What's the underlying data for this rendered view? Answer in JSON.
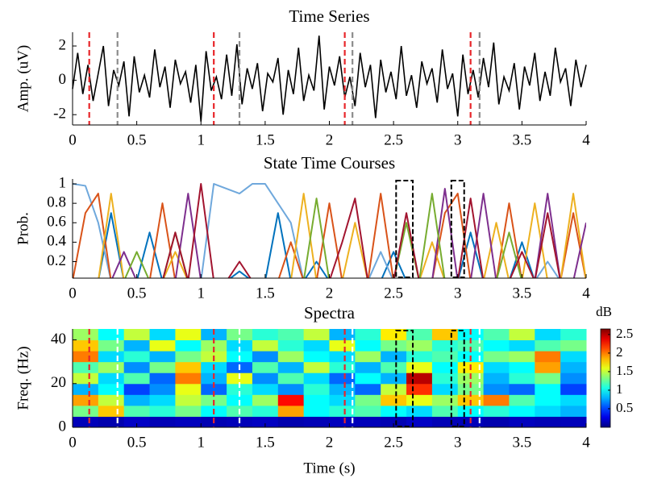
{
  "chart_data": [
    {
      "type": "line",
      "title": "Time Series",
      "ylabel": "Amp. (uV)",
      "color": "#000000",
      "xlim": [
        0,
        4
      ],
      "xticks": [
        0,
        0.5,
        1,
        1.5,
        2,
        2.5,
        3,
        3.5,
        4
      ],
      "ylim": [
        -2.6,
        2.8
      ],
      "yticks": [
        -2,
        0,
        2
      ],
      "x": [
        0,
        0.04,
        0.08,
        0.12,
        0.16,
        0.2,
        0.24,
        0.28,
        0.32,
        0.36,
        0.4,
        0.44,
        0.48,
        0.52,
        0.56,
        0.6,
        0.64,
        0.68,
        0.72,
        0.76,
        0.8,
        0.84,
        0.88,
        0.92,
        0.96,
        1,
        1.04,
        1.08,
        1.12,
        1.16,
        1.2,
        1.24,
        1.28,
        1.32,
        1.36,
        1.4,
        1.44,
        1.48,
        1.52,
        1.56,
        1.6,
        1.64,
        1.68,
        1.72,
        1.76,
        1.8,
        1.84,
        1.88,
        1.92,
        1.96,
        2,
        2.04,
        2.08,
        2.12,
        2.16,
        2.2,
        2.24,
        2.28,
        2.32,
        2.36,
        2.4,
        2.44,
        2.48,
        2.52,
        2.56,
        2.6,
        2.64,
        2.68,
        2.72,
        2.76,
        2.8,
        2.84,
        2.88,
        2.92,
        2.96,
        3,
        3.04,
        3.08,
        3.12,
        3.16,
        3.2,
        3.24,
        3.28,
        3.32,
        3.36,
        3.4,
        3.44,
        3.48,
        3.52,
        3.56,
        3.6,
        3.64,
        3.68,
        3.72,
        3.76,
        3.8,
        3.84,
        3.88,
        3.92,
        3.96,
        4
      ],
      "values": [
        -0.5,
        1.6,
        -0.8,
        0.9,
        -1.2,
        0.4,
        2.0,
        -1.5,
        0.6,
        -0.3,
        1.1,
        -2.1,
        1.4,
        -0.7,
        0.3,
        -1.0,
        1.8,
        -0.4,
        0.8,
        -1.6,
        1.2,
        -0.2,
        0.5,
        -1.3,
        0.9,
        -2.4,
        1.7,
        -0.6,
        0.2,
        -1.1,
        1.5,
        -0.9,
        2.1,
        -1.4,
        0.7,
        -0.5,
        1.0,
        -1.8,
        0.4,
        -0.1,
        1.3,
        -2.0,
        0.6,
        -0.8,
        1.9,
        -1.2,
        0.3,
        -0.6,
        2.6,
        -1.7,
        0.8,
        -0.3,
        1.4,
        -1.0,
        0.2,
        -1.5,
        1.6,
        -0.4,
        0.9,
        -2.2,
        1.2,
        -0.7,
        0.5,
        -1.1,
        2.0,
        -0.9,
        0.3,
        -1.6,
        1.1,
        -0.2,
        0.7,
        -1.3,
        1.8,
        -0.5,
        0.4,
        -2.1,
        1.5,
        -0.8,
        0.6,
        -1.0,
        1.3,
        -0.4,
        2.2,
        -1.4,
        0.2,
        -0.6,
        1.0,
        -1.7,
        0.8,
        -0.3,
        1.6,
        -1.2,
        0.5,
        -0.9,
        1.9,
        -0.1,
        0.7,
        -1.5,
        1.2,
        -0.4,
        0.9
      ],
      "vlines": [
        {
          "color": "#e8262a",
          "x": [
            0.13,
            1.1,
            2.12,
            3.1
          ]
        },
        {
          "color": "#8c8c8c",
          "x": [
            0.35,
            1.3,
            2.18,
            3.17
          ]
        }
      ]
    },
    {
      "type": "multiline",
      "title": "State Time Courses",
      "ylabel": "Prob.",
      "xlim": [
        0,
        4
      ],
      "xticks": [
        0,
        0.5,
        1,
        1.5,
        2,
        2.5,
        3,
        3.5,
        4
      ],
      "ylim": [
        0.03,
        1.05
      ],
      "yticks": [
        0.2,
        0.4,
        0.6,
        0.8,
        1
      ],
      "x": [
        0,
        0.1,
        0.2,
        0.3,
        0.4,
        0.5,
        0.6,
        0.7,
        0.8,
        0.9,
        1,
        1.1,
        1.2,
        1.3,
        1.4,
        1.5,
        1.6,
        1.7,
        1.8,
        1.9,
        2,
        2.1,
        2.2,
        2.3,
        2.4,
        2.5,
        2.6,
        2.7,
        2.8,
        2.9,
        3,
        3.1,
        3.2,
        3.3,
        3.4,
        3.5,
        3.6,
        3.7,
        3.8,
        3.9,
        4
      ],
      "series": [
        {
          "color": "#0072bd",
          "values": [
            0,
            0,
            0,
            0.7,
            0,
            0,
            0.5,
            0,
            0,
            0,
            0,
            0,
            0,
            0.1,
            0,
            0,
            0.7,
            0,
            0,
            0.2,
            0,
            0,
            0,
            0,
            0,
            0.3,
            0,
            0,
            0,
            0,
            0,
            0.5,
            0,
            0,
            0,
            0.4,
            0,
            0,
            0,
            0,
            0
          ]
        },
        {
          "color": "#6fa8dc",
          "values": [
            1,
            0.98,
            0.6,
            0,
            0,
            0,
            0,
            0,
            0,
            0,
            0,
            1,
            0.95,
            0.9,
            1,
            1,
            0.8,
            0.6,
            0,
            0,
            0,
            0,
            0,
            0,
            0.3,
            0,
            0,
            0,
            0,
            0,
            0,
            0,
            0,
            0,
            0,
            0,
            0,
            0.2,
            0,
            0,
            0
          ]
        },
        {
          "color": "#d95319",
          "values": [
            0,
            0.7,
            0.9,
            0,
            0,
            0,
            0,
            0.8,
            0,
            0,
            0,
            0,
            0,
            0,
            0,
            0,
            0,
            0.4,
            0,
            0,
            0.8,
            0,
            0,
            0,
            0.9,
            0,
            0,
            0,
            0,
            0.7,
            0.9,
            0,
            0,
            0,
            0.8,
            0,
            0,
            0,
            0,
            0.7,
            0
          ]
        },
        {
          "color": "#edb120",
          "values": [
            0,
            0,
            0,
            0.9,
            0,
            0,
            0,
            0,
            0.3,
            0,
            0,
            0,
            0,
            0,
            0,
            0,
            0,
            0,
            0.9,
            0,
            0,
            0,
            0.6,
            0,
            0,
            0,
            0,
            0,
            0.4,
            0,
            0,
            0,
            0,
            0.6,
            0,
            0,
            0.8,
            0,
            0,
            0.9,
            0
          ]
        },
        {
          "color": "#7e2f8e",
          "values": [
            0,
            0,
            0,
            0,
            0.3,
            0,
            0,
            0,
            0,
            0.9,
            0,
            0,
            0,
            0,
            0,
            0,
            0,
            0,
            0,
            0,
            0,
            0,
            0,
            0,
            0,
            0,
            0,
            0,
            0,
            0.95,
            0,
            0,
            0.9,
            0,
            0,
            0,
            0,
            0.9,
            0,
            0,
            0.6
          ]
        },
        {
          "color": "#77ac30",
          "values": [
            0,
            0,
            0,
            0,
            0,
            0.3,
            0,
            0,
            0.5,
            0,
            0,
            0,
            0,
            0,
            0,
            0,
            0,
            0,
            0,
            0.85,
            0,
            0,
            0,
            0,
            0,
            0,
            0.6,
            0,
            0.9,
            0,
            0,
            0,
            0,
            0,
            0.5,
            0,
            0,
            0,
            0,
            0,
            0
          ]
        },
        {
          "color": "#a2142f",
          "values": [
            0,
            0,
            0,
            0,
            0,
            0,
            0,
            0,
            0.5,
            0,
            1,
            0,
            0,
            0.2,
            0,
            0,
            0,
            0,
            0,
            0,
            0,
            0.4,
            0.85,
            0,
            0,
            0,
            0.7,
            0,
            0,
            0,
            0,
            0.85,
            0,
            0,
            0,
            0.3,
            0,
            0.7,
            0,
            0,
            0
          ]
        }
      ],
      "boxes": [
        [
          2.52,
          2.65
        ],
        [
          2.95,
          3.05
        ]
      ]
    },
    {
      "type": "heatmap",
      "title": "Spectra",
      "ylabel": "Freq. (Hz)",
      "xlabel": "Time (s)",
      "xlim": [
        0,
        4
      ],
      "xticks": [
        0,
        0.5,
        1,
        1.5,
        2,
        2.5,
        3,
        3.5,
        4
      ],
      "ylim": [
        0,
        45
      ],
      "yticks": [
        0,
        20,
        40
      ],
      "x_edges": [
        0,
        0.2,
        0.4,
        0.6,
        0.8,
        1,
        1.2,
        1.4,
        1.6,
        1.8,
        2,
        2.2,
        2.4,
        2.6,
        2.8,
        3,
        3.2,
        3.4,
        3.6,
        3.8,
        4
      ],
      "y_edges": [
        0,
        5,
        10,
        15,
        20,
        25,
        30,
        35,
        40,
        45
      ],
      "z": [
        [
          0.15,
          0.12,
          0.18,
          0.14,
          0.16,
          0.13,
          0.15,
          0.17,
          0.12,
          0.14,
          0.16,
          0.15,
          0.13,
          0.18,
          0.14,
          0.15,
          0.12,
          0.16,
          0.14,
          0.15
        ],
        [
          1.3,
          1.8,
          1.2,
          1.1,
          1.3,
          1.0,
          1.2,
          1.1,
          1.9,
          1.0,
          1.1,
          1.2,
          1.0,
          0.9,
          1.2,
          1.0,
          1.1,
          1.0,
          0.9,
          0.8
        ],
        [
          1.9,
          1.5,
          0.8,
          0.9,
          1.5,
          1.3,
          1.0,
          1.4,
          2.3,
          1.0,
          0.9,
          1.3,
          1.8,
          1.6,
          1.4,
          1.8,
          2.0,
          1.2,
          1.0,
          0.9
        ],
        [
          0.8,
          1.0,
          0.5,
          0.7,
          1.6,
          0.6,
          1.1,
          0.9,
          0.7,
          1.1,
          0.8,
          0.6,
          1.5,
          2.2,
          0.9,
          1.3,
          0.7,
          0.6,
          1.0,
          0.5
        ],
        [
          1.5,
          0.9,
          1.2,
          0.6,
          2.0,
          0.8,
          1.6,
          0.7,
          1.2,
          0.9,
          0.6,
          1.0,
          0.8,
          2.5,
          1.1,
          1.4,
          0.8,
          1.1,
          1.3,
          0.7
        ],
        [
          1.2,
          1.4,
          0.7,
          1.3,
          1.8,
          0.9,
          0.6,
          1.2,
          0.8,
          1.5,
          1.1,
          0.8,
          1.2,
          1.6,
          1.0,
          1.7,
          0.9,
          1.0,
          1.9,
          0.8
        ],
        [
          2.0,
          0.9,
          1.1,
          0.8,
          1.3,
          1.5,
          1.0,
          0.7,
          1.4,
          1.0,
          0.9,
          1.4,
          0.8,
          1.1,
          1.2,
          1.0,
          1.3,
          1.4,
          2.0,
          0.9
        ],
        [
          1.8,
          1.3,
          0.8,
          1.6,
          1.0,
          1.4,
          0.9,
          1.5,
          1.1,
          0.9,
          1.6,
          1.0,
          1.3,
          1.4,
          1.1,
          1.2,
          1.0,
          0.9,
          1.2,
          1.3
        ],
        [
          1.4,
          1.0,
          1.5,
          0.9,
          1.6,
          0.8,
          1.3,
          1.1,
          1.2,
          1.5,
          0.8,
          1.1,
          1.7,
          1.2,
          1.8,
          1.0,
          1.2,
          1.5,
          0.9,
          1.1
        ]
      ],
      "colorbar": {
        "label": "dB",
        "lim": [
          0,
          2.65
        ],
        "ticks": [
          0.5,
          1,
          1.5,
          2,
          2.5
        ]
      },
      "vlines": [
        {
          "color": "#e8262a",
          "x": [
            0.13,
            1.1,
            2.12,
            3.1
          ]
        },
        {
          "color": "#ffffff",
          "x": [
            0.35,
            1.3,
            2.18,
            3.17
          ]
        }
      ],
      "boxes": [
        [
          2.52,
          2.65
        ],
        [
          2.95,
          3.05
        ]
      ]
    }
  ]
}
